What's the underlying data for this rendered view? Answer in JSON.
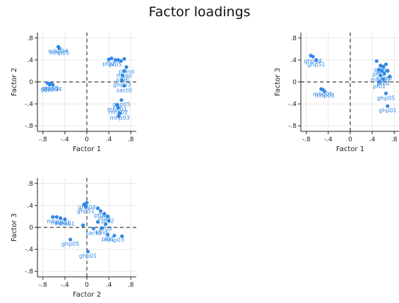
{
  "figure": {
    "title": "Factor loadings"
  },
  "colors": {
    "point": "#2f88e6",
    "label": "#3f8fe6",
    "grid": "#e7e7e7",
    "axis": "#222222",
    "ref_line": "#111111"
  },
  "chart_data": [
    {
      "type": "scatter",
      "id": "f1-vs-f2",
      "title": "",
      "xlabel": "Factor 1",
      "ylabel": "Factor 2",
      "xlim": [
        -0.9,
        0.9
      ],
      "ylim": [
        -0.9,
        0.9
      ],
      "xticks": [
        -0.8,
        -0.4,
        0,
        0.4,
        0.8
      ],
      "yticks": [
        -0.8,
        -0.4,
        0,
        0.4,
        0.8
      ],
      "xtick_labels": [
        "-.8",
        "-.4",
        "0",
        ".4",
        ".8"
      ],
      "ytick_labels": [
        "-.8",
        "-.4",
        "0",
        ".4",
        ".8"
      ],
      "grid": true,
      "ref_lines": {
        "x": 0,
        "y": 0
      },
      "points": [
        {
          "x": -0.52,
          "y": 0.64,
          "label": "mhp04"
        },
        {
          "x": -0.5,
          "y": 0.61,
          "label": "mhp05"
        },
        {
          "x": -0.72,
          "y": -0.02,
          "label": ""
        },
        {
          "x": -0.66,
          "y": -0.03,
          "label": "ghp01"
        },
        {
          "x": -0.62,
          "y": -0.05,
          "label": "ghp04"
        },
        {
          "x": -0.68,
          "y": -0.05,
          "label": "ghp51"
        },
        {
          "x": 0.4,
          "y": 0.41,
          "label": "pf02"
        },
        {
          "x": 0.45,
          "y": 0.43,
          "label": ""
        },
        {
          "x": 0.52,
          "y": 0.4,
          "label": "pf05"
        },
        {
          "x": 0.57,
          "y": 0.4,
          "label": ""
        },
        {
          "x": 0.62,
          "y": 0.38,
          "label": ""
        },
        {
          "x": 0.68,
          "y": 0.42,
          "label": ""
        },
        {
          "x": 0.72,
          "y": 0.27,
          "label": "pkind"
        },
        {
          "x": 0.68,
          "y": 0.2,
          "label": "msep"
        },
        {
          "x": 0.65,
          "y": 0.12,
          "label": "pf06"
        },
        {
          "x": 0.64,
          "y": 0.03,
          "label": "ghp03"
        },
        {
          "x": 0.68,
          "y": -0.07,
          "label": "sact0"
        },
        {
          "x": 0.63,
          "y": -0.33,
          "label": "ghp05"
        },
        {
          "x": 0.55,
          "y": -0.42,
          "label": "mha01"
        },
        {
          "x": 0.57,
          "y": -0.47,
          "label": "mhp02"
        },
        {
          "x": 0.6,
          "y": -0.57,
          "label": "mhp03"
        },
        {
          "x": 0.58,
          "y": -0.62,
          "label": ""
        }
      ]
    },
    {
      "type": "scatter",
      "id": "f1-vs-f3",
      "title": "",
      "xlabel": "Factor 1",
      "ylabel": "Factor 3",
      "xlim": [
        -0.9,
        0.9
      ],
      "ylim": [
        -0.9,
        0.9
      ],
      "xticks": [
        -0.8,
        -0.4,
        0,
        0.4,
        0.8
      ],
      "yticks": [
        -0.8,
        -0.4,
        0,
        0.4,
        0.8
      ],
      "xtick_labels": [
        "-.8",
        "-.4",
        "0",
        ".4",
        ".8"
      ],
      "ytick_labels": [
        "-.8",
        "-.4",
        "0",
        ".4",
        ".8"
      ],
      "grid": true,
      "ref_lines": {
        "x": 0,
        "y": 0
      },
      "points": [
        {
          "x": -0.72,
          "y": 0.48,
          "label": ""
        },
        {
          "x": -0.68,
          "y": 0.46,
          "label": "ghp04"
        },
        {
          "x": -0.62,
          "y": 0.4,
          "label": "ghp51"
        },
        {
          "x": -0.53,
          "y": -0.13,
          "label": ""
        },
        {
          "x": -0.5,
          "y": -0.14,
          "label": "mhp05"
        },
        {
          "x": -0.47,
          "y": -0.17,
          "label": "mhp03"
        },
        {
          "x": 0.48,
          "y": 0.38,
          "label": ""
        },
        {
          "x": 0.55,
          "y": 0.3,
          "label": "pf05"
        },
        {
          "x": 0.6,
          "y": 0.28,
          "label": "pf06"
        },
        {
          "x": 0.65,
          "y": 0.32,
          "label": ""
        },
        {
          "x": 0.52,
          "y": 0.22,
          "label": "pf03"
        },
        {
          "x": 0.58,
          "y": 0.2,
          "label": ""
        },
        {
          "x": 0.68,
          "y": 0.2,
          "label": ""
        },
        {
          "x": 0.62,
          "y": 0.15,
          "label": "sact0"
        },
        {
          "x": 0.55,
          "y": 0.12,
          "label": "mhp01"
        },
        {
          "x": 0.72,
          "y": 0.1,
          "label": ""
        },
        {
          "x": 0.6,
          "y": 0.05,
          "label": "pf04"
        },
        {
          "x": 0.53,
          "y": 0.0,
          "label": "pf01"
        },
        {
          "x": 0.65,
          "y": -0.21,
          "label": "ghp05"
        },
        {
          "x": 0.68,
          "y": -0.44,
          "label": "ghp01"
        }
      ]
    },
    {
      "type": "scatter",
      "id": "f2-vs-f3",
      "title": "",
      "xlabel": "Factor 2",
      "ylabel": "Factor 3",
      "xlim": [
        -0.9,
        0.9
      ],
      "ylim": [
        -0.9,
        0.9
      ],
      "xticks": [
        -0.8,
        -0.4,
        0,
        0.4,
        0.8
      ],
      "yticks": [
        -0.8,
        -0.4,
        0,
        0.4,
        0.8
      ],
      "xtick_labels": [
        "-.8",
        "-.4",
        "0",
        ".4",
        ".8"
      ],
      "ytick_labels": [
        "-.8",
        "-.4",
        "0",
        ".4",
        ".8"
      ],
      "grid": true,
      "ref_lines": {
        "x": 0,
        "y": 0
      },
      "points": [
        {
          "x": -0.62,
          "y": 0.19,
          "label": ""
        },
        {
          "x": -0.55,
          "y": 0.19,
          "label": "mhp05"
        },
        {
          "x": -0.48,
          "y": 0.17,
          "label": "mhp01"
        },
        {
          "x": -0.4,
          "y": 0.15,
          "label": "mha01"
        },
        {
          "x": -0.05,
          "y": 0.42,
          "label": ""
        },
        {
          "x": 0.0,
          "y": 0.45,
          "label": "ghp04"
        },
        {
          "x": -0.02,
          "y": 0.38,
          "label": "ghp51"
        },
        {
          "x": 0.2,
          "y": 0.35,
          "label": ""
        },
        {
          "x": 0.25,
          "y": 0.3,
          "label": "pf06"
        },
        {
          "x": 0.32,
          "y": 0.25,
          "label": "pf05"
        },
        {
          "x": 0.38,
          "y": 0.2,
          "label": "pf02"
        },
        {
          "x": 0.4,
          "y": 0.12,
          "label": ""
        },
        {
          "x": 0.34,
          "y": 0.06,
          "label": "pf03"
        },
        {
          "x": 0.2,
          "y": 0.1,
          "label": ""
        },
        {
          "x": -0.07,
          "y": 0.04,
          "label": ""
        },
        {
          "x": 0.12,
          "y": -0.02,
          "label": "sact0"
        },
        {
          "x": 0.27,
          "y": -0.01,
          "label": "kind"
        },
        {
          "x": 0.38,
          "y": -0.13,
          "label": "pf01"
        },
        {
          "x": 0.5,
          "y": -0.15,
          "label": "mhp03"
        },
        {
          "x": 0.64,
          "y": -0.16,
          "label": ""
        },
        {
          "x": -0.3,
          "y": -0.22,
          "label": "ghp05"
        },
        {
          "x": 0.02,
          "y": -0.44,
          "label": "ghp01"
        }
      ]
    }
  ]
}
